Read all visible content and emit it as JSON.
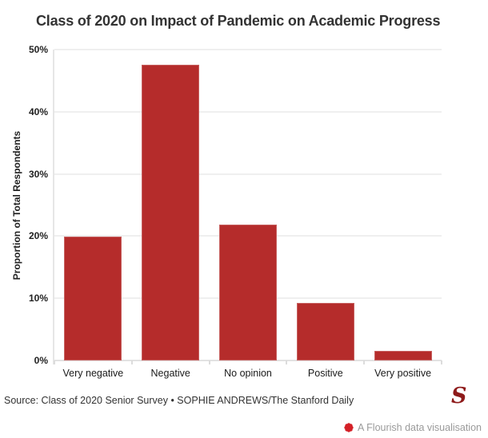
{
  "title": "Class of 2020 on Impact of Pandemic on Academic Progress",
  "chart_data": {
    "type": "bar",
    "title": "Class of 2020 on Impact of Pandemic on Academic Progress",
    "categories": [
      "Very negative",
      "Negative",
      "No opinion",
      "Positive",
      "Very positive"
    ],
    "values": [
      19.9,
      47.6,
      21.8,
      9.2,
      1.5
    ],
    "xlabel": "",
    "ylabel": "Proportion of Total Respondents",
    "ylim": [
      0,
      50
    ],
    "ytick_step": 10,
    "ytick_suffix": "%",
    "grid": true,
    "legend": "none",
    "bar_color": "#b52c2b"
  },
  "colors": {
    "bar": "#b52c2b",
    "title_text": "#333333",
    "axis_text": "#1a1a1a",
    "gridline": "#efefef",
    "axis_line": "#e2e2e2",
    "source_text": "#333333",
    "daily_logo_red": "#8e1a1a",
    "flourish_red": "#d42027",
    "flourish_gray": "#9a9a9a"
  },
  "footer": {
    "source": "Source: Class of 2020 Senior Survey • SOPHIE ANDREWS/The Stanford Daily",
    "logo_letter": "S",
    "attribution": "A Flourish data visualisation"
  }
}
